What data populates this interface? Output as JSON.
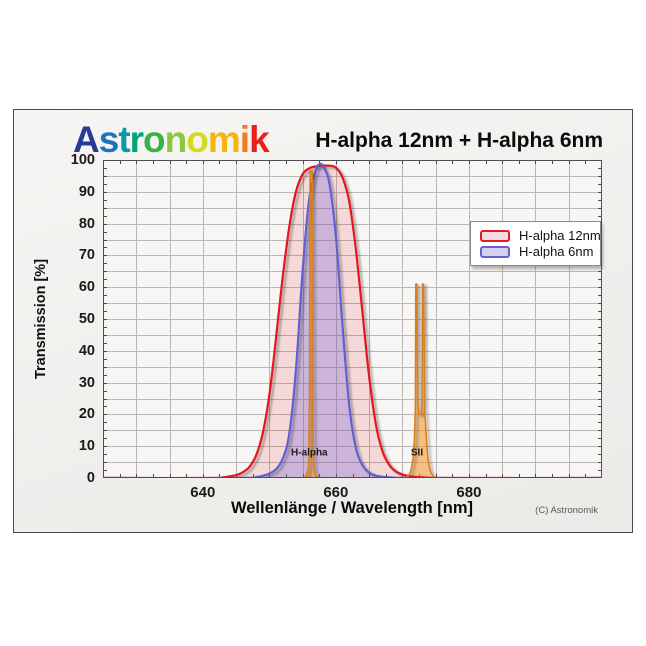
{
  "page": {
    "background": "#ffffff"
  },
  "panel": {
    "border_color": "#4a4b4e",
    "background_top": "#f6f5f3",
    "background_bottom": "#eceae7"
  },
  "logo": {
    "text": "Astronomik",
    "letters": [
      {
        "ch": "A",
        "color": "#283a93"
      },
      {
        "ch": "s",
        "color": "#1b74bd"
      },
      {
        "ch": "t",
        "color": "#0d98a6"
      },
      {
        "ch": "r",
        "color": "#00a37c"
      },
      {
        "ch": "o",
        "color": "#37b34a"
      },
      {
        "ch": "n",
        "color": "#8cc63f"
      },
      {
        "ch": "o",
        "color": "#d4d921"
      },
      {
        "ch": "m",
        "color": "#f6b40e"
      },
      {
        "ch": "i",
        "color": "#f47c20"
      },
      {
        "ch": "k",
        "color": "#e8201e"
      }
    ]
  },
  "header": {
    "title": "H-alpha 12nm + H-alpha 6nm"
  },
  "footer": {
    "copyright": "(C) Astronomik"
  },
  "chart_data": {
    "type": "area",
    "title": "H-alpha 12nm + H-alpha 6nm",
    "xlabel": "Wellenlänge / Wavelength [nm]",
    "ylabel": "Transmission [%]",
    "layout": {
      "xlim": [
        625,
        700
      ],
      "ylim": [
        0,
        100
      ],
      "grid_step_x": 5,
      "grid_step_y": 5,
      "minor_tick_step_x": 2.5,
      "minor_tick_step_y": 2.5,
      "grid": true,
      "legend_position": "top-right"
    },
    "x_ticks": [
      640,
      660,
      680
    ],
    "y_ticks": [
      0,
      10,
      20,
      30,
      40,
      50,
      60,
      70,
      80,
      90,
      100
    ],
    "colors": {
      "plot_bg": "#f7f6f4",
      "grid": "#b8b7b5",
      "frame": "#4f4f52",
      "minor_tick": "#4a4a4a",
      "annotation_text": "#1c1c1c"
    },
    "series": [
      {
        "name": "H-alpha 12nm",
        "color": "#e5161f",
        "fill": "rgba(229,22,31,0.13)",
        "width": 2.2,
        "smooth": true,
        "points": [
          [
            625,
            0
          ],
          [
            641,
            0
          ],
          [
            643,
            0.2
          ],
          [
            644,
            0.5
          ],
          [
            645,
            0.9
          ],
          [
            646,
            1.8
          ],
          [
            647,
            3.5
          ],
          [
            648,
            7
          ],
          [
            649,
            14
          ],
          [
            650,
            26
          ],
          [
            651,
            44
          ],
          [
            652,
            63
          ],
          [
            653,
            79
          ],
          [
            654,
            90
          ],
          [
            655,
            95.5
          ],
          [
            656,
            97.4
          ],
          [
            657,
            98
          ],
          [
            658,
            98.2
          ],
          [
            659,
            98.2
          ],
          [
            660,
            97.6
          ],
          [
            661,
            94.5
          ],
          [
            662,
            87
          ],
          [
            663,
            72
          ],
          [
            664,
            52
          ],
          [
            665,
            32
          ],
          [
            666,
            17
          ],
          [
            667,
            8.5
          ],
          [
            668,
            4.2
          ],
          [
            669,
            2.1
          ],
          [
            670,
            1.1
          ],
          [
            671,
            0.6
          ],
          [
            672,
            0.3
          ],
          [
            674,
            0.1
          ],
          [
            676,
            0
          ],
          [
            700,
            0
          ]
        ]
      },
      {
        "name": "H-alpha 6nm",
        "color": "#6160d2",
        "fill": "rgba(105,95,215,0.30)",
        "width": 2.2,
        "smooth": true,
        "points": [
          [
            625,
            0
          ],
          [
            646,
            0
          ],
          [
            648,
            0.3
          ],
          [
            649,
            0.7
          ],
          [
            650,
            1.4
          ],
          [
            651,
            2.8
          ],
          [
            652,
            6
          ],
          [
            653,
            14
          ],
          [
            654,
            34
          ],
          [
            655,
            65
          ],
          [
            656,
            88
          ],
          [
            657,
            96.8
          ],
          [
            657.5,
            98.6
          ],
          [
            658,
            98.2
          ],
          [
            659,
            93
          ],
          [
            660,
            76
          ],
          [
            661,
            48
          ],
          [
            662,
            23
          ],
          [
            663,
            9.5
          ],
          [
            664,
            4
          ],
          [
            665,
            1.7
          ],
          [
            666,
            0.8
          ],
          [
            667,
            0.35
          ],
          [
            669,
            0.1
          ],
          [
            671,
            0
          ],
          [
            700,
            0
          ]
        ]
      },
      {
        "name": "H-alpha emission line",
        "color": "#d9801f",
        "fill": "rgba(243,146,33,0.55)",
        "width": 1.6,
        "smooth": false,
        "points": [
          [
            655.2,
            0
          ],
          [
            655.6,
            0.8
          ],
          [
            655.85,
            3
          ],
          [
            655.95,
            8
          ],
          [
            656.05,
            30
          ],
          [
            656.12,
            96.5
          ],
          [
            656.45,
            96.5
          ],
          [
            656.52,
            30
          ],
          [
            656.62,
            8
          ],
          [
            656.72,
            3
          ],
          [
            657.0,
            0.8
          ],
          [
            657.4,
            0
          ]
        ]
      },
      {
        "name": "SII emission line",
        "color": "#d9801f",
        "fill": "rgba(243,146,33,0.55)",
        "width": 1.6,
        "smooth": false,
        "points": [
          [
            670.5,
            0
          ],
          [
            671.0,
            1
          ],
          [
            671.3,
            2.5
          ],
          [
            671.6,
            6
          ],
          [
            671.8,
            12
          ],
          [
            671.95,
            22
          ],
          [
            672.02,
            61
          ],
          [
            672.18,
            61
          ],
          [
            672.3,
            24
          ],
          [
            672.5,
            20
          ],
          [
            672.8,
            20
          ],
          [
            672.95,
            24
          ],
          [
            673.02,
            61
          ],
          [
            673.18,
            61
          ],
          [
            673.35,
            22
          ],
          [
            673.6,
            12
          ],
          [
            673.85,
            6
          ],
          [
            674.15,
            2.5
          ],
          [
            674.5,
            1
          ],
          [
            674.9,
            0
          ]
        ]
      }
    ],
    "annotations": [
      {
        "text": "H-alpha",
        "x": 656,
        "y": 7
      },
      {
        "text": "SII",
        "x": 672.2,
        "y": 7
      }
    ],
    "legend": {
      "entries": [
        {
          "label": "H-alpha 12nm",
          "border": "#e31b23",
          "fill": "#f6dbe3"
        },
        {
          "label": "H-alpha 6nm",
          "border": "#6561d8",
          "fill": "#d6d0f0"
        }
      ]
    }
  }
}
